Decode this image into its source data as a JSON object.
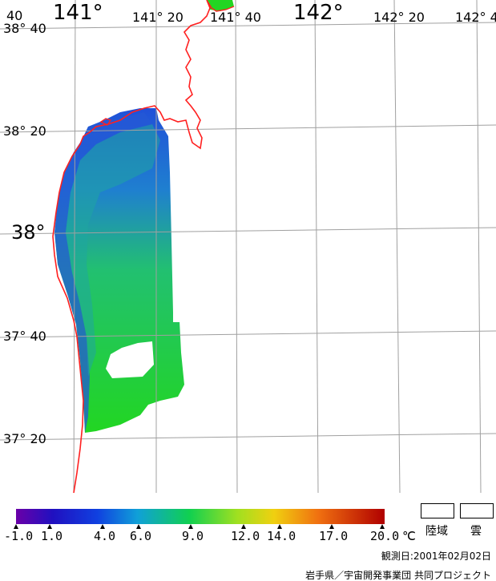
{
  "map": {
    "lon_labels": [
      {
        "text": "141°"
      },
      {
        "text": "141° 20"
      },
      {
        "text": "141° 40"
      },
      {
        "text": "142°"
      },
      {
        "text": "142° 20"
      },
      {
        "text": "142° 4"
      }
    ],
    "lat_labels": [
      {
        "text": "38° 40"
      },
      {
        "text": "38° 20"
      },
      {
        "text": "38°"
      },
      {
        "text": "37° 40"
      },
      {
        "text": "37° 20"
      }
    ],
    "corner_label": "40",
    "colors": {
      "background": "#ffffff",
      "grid": "#a0a0a0",
      "coastline": "#ff2020",
      "sst_cold": "#2a5fd8",
      "sst_mid": "#1fae9a",
      "sst_warm": "#22d622"
    }
  },
  "legend": {
    "ticks": [
      "-1.0",
      "1.0",
      "4.0",
      "6.0",
      "9.0",
      "12.0",
      "14.0",
      "17.0",
      "20.0"
    ],
    "unit": "℃",
    "land_label": "陸域",
    "cloud_label": "雲",
    "gradient_colors": [
      "#6a00a8",
      "#2020c8",
      "#1060e0",
      "#10a0d0",
      "#10d060",
      "#80e020",
      "#e0e020",
      "#f09020",
      "#e02010",
      "#b00000"
    ]
  },
  "footer": {
    "observation_date": "観測日:2001年02月02日",
    "credit": "岩手県／宇宙開発事業団 共同プロジェクト"
  }
}
